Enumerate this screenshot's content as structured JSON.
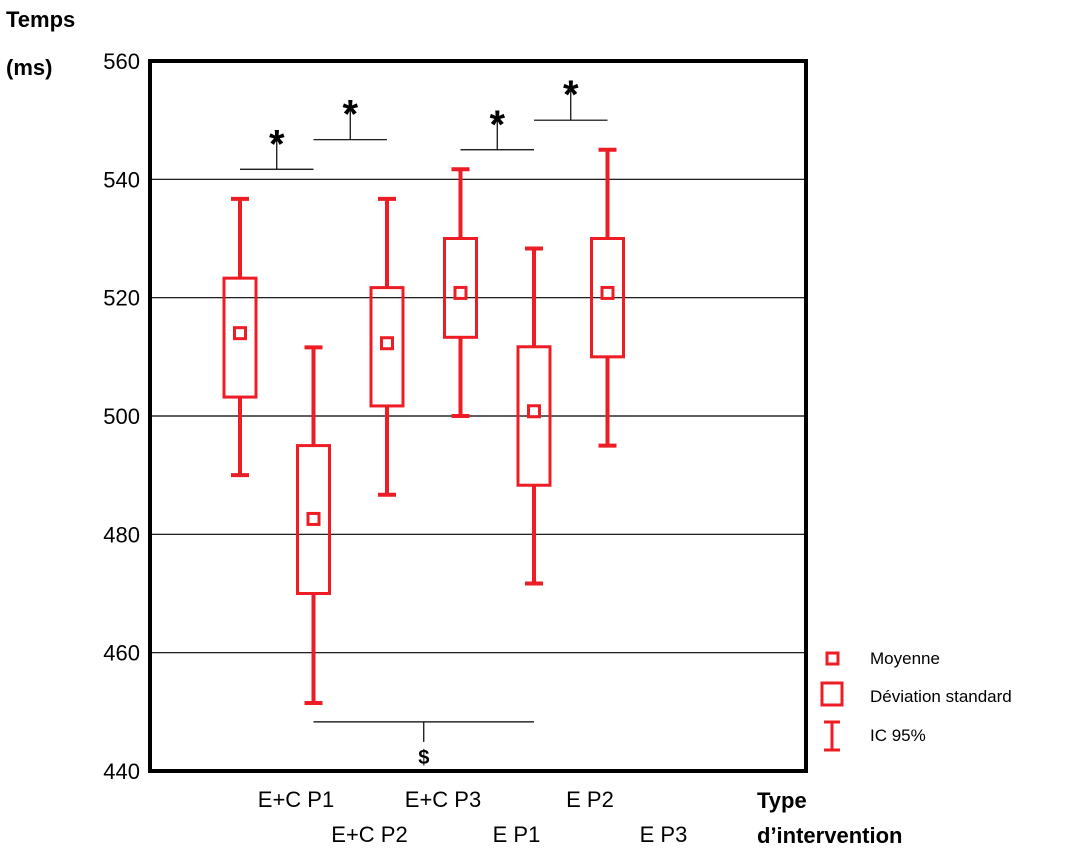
{
  "chart_data": {
    "type": "box",
    "ylabel_line1": "Temps",
    "ylabel_line2": "(ms)",
    "xlabel_line1": "Type",
    "xlabel_line2": "d’intervention",
    "ylim": [
      440,
      560
    ],
    "yticks": [
      440,
      460,
      480,
      500,
      520,
      540,
      560
    ],
    "grid": true,
    "categories": [
      "E+C P1",
      "E+C P2",
      "E+C P3",
      "E P1",
      "E P2",
      "E P3"
    ],
    "series": [
      {
        "category": "E+C P1",
        "mean": 514,
        "sd_low": 503.2,
        "sd_high": 523.3,
        "ci_low": 490,
        "ci_high": 536.7
      },
      {
        "category": "E+C P2",
        "mean": 482.6,
        "sd_low": 470,
        "sd_high": 495,
        "ci_low": 451.5,
        "ci_high": 511.6
      },
      {
        "category": "E+C P3",
        "mean": 512.3,
        "sd_low": 501.7,
        "sd_high": 521.7,
        "ci_low": 486.7,
        "ci_high": 536.7
      },
      {
        "category": "E P1",
        "mean": 520.8,
        "sd_low": 513.3,
        "sd_high": 530,
        "ci_low": 500,
        "ci_high": 541.7
      },
      {
        "category": "E P2",
        "mean": 500.8,
        "sd_low": 488.3,
        "sd_high": 511.7,
        "ci_low": 471.7,
        "ci_high": 528.3
      },
      {
        "category": "E P3",
        "mean": 520.8,
        "sd_low": 510,
        "sd_high": 530,
        "ci_low": 495,
        "ci_high": 545
      }
    ],
    "significance": [
      {
        "from": "E+C P1",
        "to": "E+C P2",
        "level": 541.7,
        "symbol": "*"
      },
      {
        "from": "E+C P2",
        "to": "E+C P3",
        "level": 546.7,
        "symbol": "*"
      },
      {
        "from": "E P1",
        "to": "E P2",
        "level": 545,
        "symbol": "*"
      },
      {
        "from": "E P2",
        "to": "E P3",
        "level": 550,
        "symbol": "*"
      },
      {
        "from": "E+C P2",
        "to": "E P2",
        "level": 448.3,
        "symbol": "$",
        "below": true
      }
    ],
    "legend": {
      "position": "bottom-right",
      "mean": "Moyenne",
      "sd": "Déviation standard",
      "ci": "IC 95%"
    },
    "colors": {
      "series": "#ee1c24",
      "grid": "#000000",
      "frame": "#000000"
    }
  }
}
